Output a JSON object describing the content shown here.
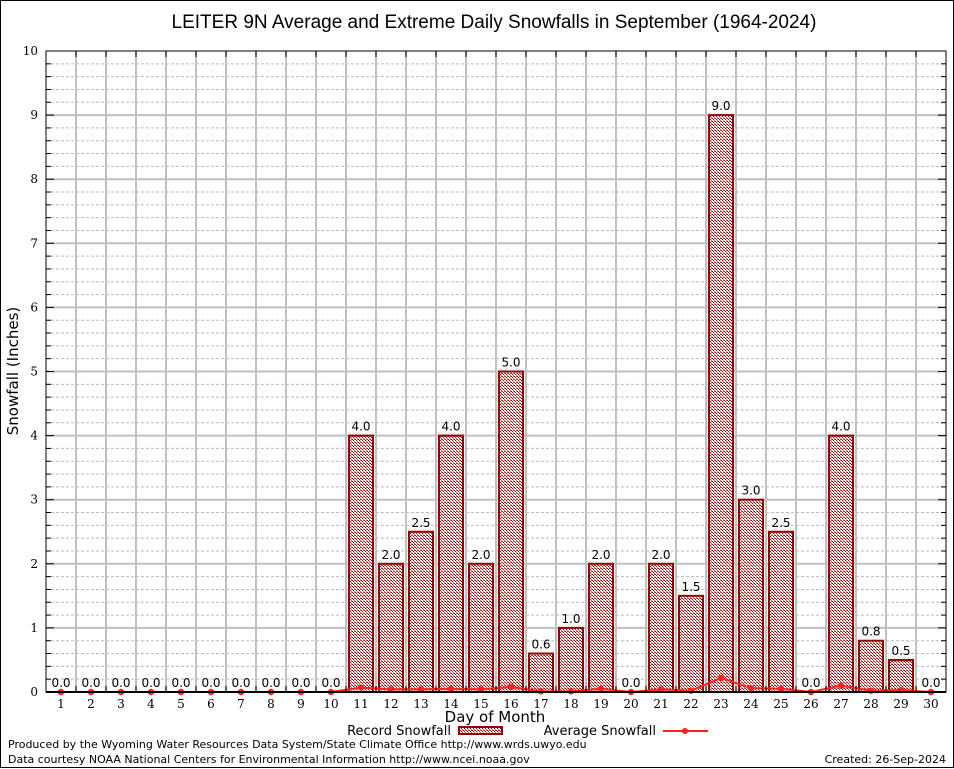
{
  "chart_data": {
    "type": "bar",
    "title": "LEITER 9N Average and Extreme Daily Snowfalls in September (1964-2024)",
    "xlabel": "Day of Month",
    "ylabel": "Snowfall (Inches)",
    "ylim": [
      0,
      10
    ],
    "yticks": [
      "0",
      "1",
      "2",
      "3",
      "4",
      "5",
      "6",
      "7",
      "8",
      "9",
      "10"
    ],
    "categories": [
      "1",
      "2",
      "3",
      "4",
      "5",
      "6",
      "7",
      "8",
      "9",
      "10",
      "11",
      "12",
      "13",
      "14",
      "15",
      "16",
      "17",
      "18",
      "19",
      "20",
      "21",
      "22",
      "23",
      "24",
      "25",
      "26",
      "27",
      "28",
      "29",
      "30"
    ],
    "grid": true,
    "series": [
      {
        "name": "Record Snowfall",
        "kind": "bar",
        "color": "#990000",
        "values": [
          0.0,
          0.0,
          0.0,
          0.0,
          0.0,
          0.0,
          0.0,
          0.0,
          0.0,
          0.0,
          4.0,
          2.0,
          2.5,
          4.0,
          2.0,
          5.0,
          0.6,
          1.0,
          2.0,
          0.0,
          2.0,
          1.5,
          9.0,
          3.0,
          2.5,
          0.0,
          4.0,
          0.8,
          0.5,
          0.0
        ],
        "labels": [
          "0.0",
          "0.0",
          "0.0",
          "0.0",
          "0.0",
          "0.0",
          "0.0",
          "0.0",
          "0.0",
          "0.0",
          "4.0",
          "2.0",
          "2.5",
          "4.0",
          "2.0",
          "5.0",
          "0.6",
          "1.0",
          "2.0",
          "0.0",
          "2.0",
          "1.5",
          "9.0",
          "3.0",
          "2.5",
          "0.0",
          "4.0",
          "0.8",
          "0.5",
          "0.0"
        ]
      },
      {
        "name": "Average Snowfall",
        "kind": "line",
        "color": "#ff2020",
        "values": [
          0,
          0,
          0,
          0,
          0,
          0,
          0,
          0,
          0,
          0,
          0.07,
          0.04,
          0.04,
          0.05,
          0.04,
          0.08,
          0.01,
          0.01,
          0.05,
          0.0,
          0.04,
          0.02,
          0.22,
          0.06,
          0.05,
          0.0,
          0.1,
          0.02,
          0.03,
          0.0
        ]
      }
    ],
    "legend": {
      "placement": "bottom-center",
      "items": [
        "Record Snowfall",
        "Average Snowfall"
      ]
    }
  },
  "footer": {
    "line1": "Produced by the Wyoming Water Resources Data System/State Climate Office http://www.wrds.uwyo.edu",
    "line2": "Data courtesy NOAA National Centers for Environmental Information http://www.ncei.noaa.gov",
    "created": "Created: 26-Sep-2024"
  }
}
